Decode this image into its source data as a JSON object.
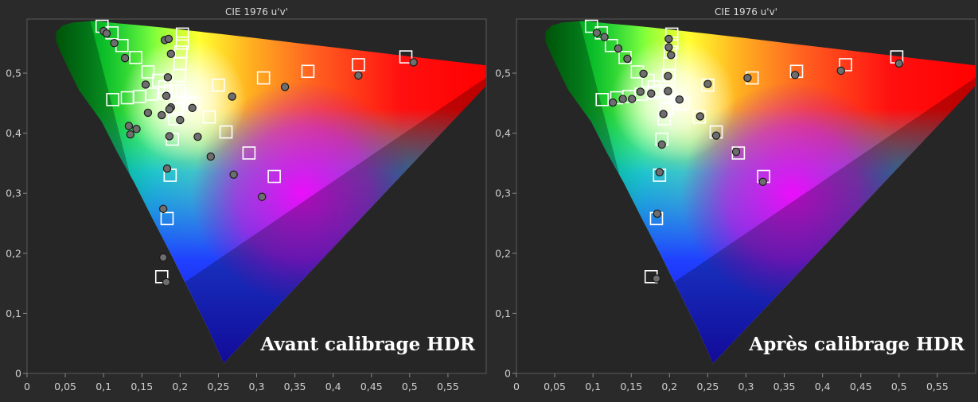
{
  "chart_data": [
    {
      "type": "scatter",
      "title": "CIE 1976 u'v'",
      "annotation": "Avant calibrage HDR",
      "xlim": [
        0,
        0.6
      ],
      "ylim": [
        0,
        0.59
      ],
      "xticks": [
        "0",
        "0,05",
        "0,1",
        "0,15",
        "0,2",
        "0,25",
        "0,3",
        "0,35",
        "0,4",
        "0,45",
        "0,5",
        "0,55"
      ],
      "yticks": [
        "0",
        "0,1",
        "0,2",
        "0,3",
        "0,4",
        "0,5"
      ],
      "series": [
        {
          "marker": "square",
          "points": [
            [
              0.098,
              0.578
            ],
            [
              0.111,
              0.567
            ],
            [
              0.124,
              0.546
            ],
            [
              0.142,
              0.526
            ],
            [
              0.158,
              0.502
            ],
            [
              0.172,
              0.488
            ],
            [
              0.18,
              0.477
            ],
            [
              0.187,
              0.47
            ],
            [
              0.203,
              0.565
            ],
            [
              0.203,
              0.55
            ],
            [
              0.201,
              0.535
            ],
            [
              0.2,
              0.516
            ],
            [
              0.199,
              0.496
            ],
            [
              0.198,
              0.47
            ],
            [
              0.495,
              0.527
            ],
            [
              0.433,
              0.514
            ],
            [
              0.367,
              0.503
            ],
            [
              0.309,
              0.492
            ],
            [
              0.25,
              0.48
            ],
            [
              0.213,
              0.45
            ],
            [
              0.196,
              0.44
            ],
            [
              0.323,
              0.328
            ],
            [
              0.29,
              0.367
            ],
            [
              0.26,
              0.402
            ],
            [
              0.238,
              0.427
            ],
            [
              0.218,
              0.449
            ],
            [
              0.176,
              0.161
            ],
            [
              0.183,
              0.258
            ],
            [
              0.187,
              0.33
            ],
            [
              0.19,
              0.39
            ],
            [
              0.193,
              0.424
            ],
            [
              0.112,
              0.456
            ],
            [
              0.131,
              0.459
            ],
            [
              0.147,
              0.461
            ],
            [
              0.163,
              0.465
            ],
            [
              0.18,
              0.467
            ]
          ]
        },
        {
          "marker": "circle",
          "points": [
            [
              0.1,
              0.57
            ],
            [
              0.104,
              0.566
            ],
            [
              0.114,
              0.55
            ],
            [
              0.128,
              0.525
            ],
            [
              0.155,
              0.481
            ],
            [
              0.18,
              0.555
            ],
            [
              0.185,
              0.557
            ],
            [
              0.188,
              0.532
            ],
            [
              0.184,
              0.493
            ],
            [
              0.182,
              0.462
            ],
            [
              0.505,
              0.518
            ],
            [
              0.433,
              0.496
            ],
            [
              0.337,
              0.477
            ],
            [
              0.268,
              0.461
            ],
            [
              0.216,
              0.442
            ],
            [
              0.2,
              0.422
            ],
            [
              0.307,
              0.294
            ],
            [
              0.27,
              0.331
            ],
            [
              0.24,
              0.361
            ],
            [
              0.223,
              0.394
            ],
            [
              0.182,
              0.152
            ],
            [
              0.178,
              0.193
            ],
            [
              0.178,
              0.274
            ],
            [
              0.183,
              0.341
            ],
            [
              0.186,
              0.395
            ],
            [
              0.133,
              0.412
            ],
            [
              0.135,
              0.398
            ],
            [
              0.143,
              0.407
            ],
            [
              0.158,
              0.434
            ],
            [
              0.176,
              0.43
            ],
            [
              0.188,
              0.443
            ],
            [
              0.186,
              0.44
            ]
          ]
        }
      ]
    },
    {
      "type": "scatter",
      "title": "CIE 1976 u'v'",
      "annotation": "Après calibrage HDR",
      "xlim": [
        0,
        0.6
      ],
      "ylim": [
        0,
        0.59
      ],
      "xticks": [
        "0",
        "0,05",
        "0,1",
        "0,15",
        "0,2",
        "0,25",
        "0,3",
        "0,35",
        "0,4",
        "0,45",
        "0,5",
        "0,55"
      ],
      "yticks": [
        "0",
        "0,1",
        "0,2",
        "0,3",
        "0,4",
        "0,5"
      ],
      "series": [
        {
          "marker": "square",
          "points": [
            [
              0.098,
              0.578
            ],
            [
              0.111,
              0.567
            ],
            [
              0.124,
              0.546
            ],
            [
              0.142,
              0.526
            ],
            [
              0.158,
              0.502
            ],
            [
              0.172,
              0.488
            ],
            [
              0.18,
              0.477
            ],
            [
              0.187,
              0.47
            ],
            [
              0.203,
              0.565
            ],
            [
              0.203,
              0.55
            ],
            [
              0.201,
              0.535
            ],
            [
              0.2,
              0.516
            ],
            [
              0.199,
              0.496
            ],
            [
              0.198,
              0.47
            ],
            [
              0.497,
              0.527
            ],
            [
              0.43,
              0.514
            ],
            [
              0.366,
              0.503
            ],
            [
              0.308,
              0.492
            ],
            [
              0.25,
              0.48
            ],
            [
              0.213,
              0.45
            ],
            [
              0.196,
              0.44
            ],
            [
              0.323,
              0.328
            ],
            [
              0.29,
              0.367
            ],
            [
              0.261,
              0.402
            ],
            [
              0.239,
              0.427
            ],
            [
              0.218,
              0.449
            ],
            [
              0.176,
              0.161
            ],
            [
              0.183,
              0.258
            ],
            [
              0.187,
              0.33
            ],
            [
              0.19,
              0.39
            ],
            [
              0.193,
              0.424
            ],
            [
              0.112,
              0.456
            ],
            [
              0.131,
              0.459
            ],
            [
              0.147,
              0.461
            ],
            [
              0.163,
              0.465
            ],
            [
              0.18,
              0.467
            ]
          ]
        },
        {
          "marker": "circle",
          "points": [
            [
              0.105,
              0.567
            ],
            [
              0.115,
              0.56
            ],
            [
              0.133,
              0.541
            ],
            [
              0.145,
              0.524
            ],
            [
              0.166,
              0.499
            ],
            [
              0.199,
              0.557
            ],
            [
              0.199,
              0.543
            ],
            [
              0.202,
              0.53
            ],
            [
              0.198,
              0.495
            ],
            [
              0.198,
              0.47
            ],
            [
              0.5,
              0.516
            ],
            [
              0.424,
              0.504
            ],
            [
              0.364,
              0.497
            ],
            [
              0.302,
              0.492
            ],
            [
              0.25,
              0.482
            ],
            [
              0.213,
              0.456
            ],
            [
              0.322,
              0.319
            ],
            [
              0.287,
              0.369
            ],
            [
              0.261,
              0.396
            ],
            [
              0.24,
              0.428
            ],
            [
              0.183,
              0.158
            ],
            [
              0.184,
              0.266
            ],
            [
              0.187,
              0.335
            ],
            [
              0.19,
              0.381
            ],
            [
              0.192,
              0.432
            ],
            [
              0.126,
              0.451
            ],
            [
              0.139,
              0.457
            ],
            [
              0.151,
              0.457
            ],
            [
              0.162,
              0.469
            ],
            [
              0.176,
              0.466
            ],
            [
              0.198,
              0.47
            ]
          ]
        }
      ]
    }
  ]
}
